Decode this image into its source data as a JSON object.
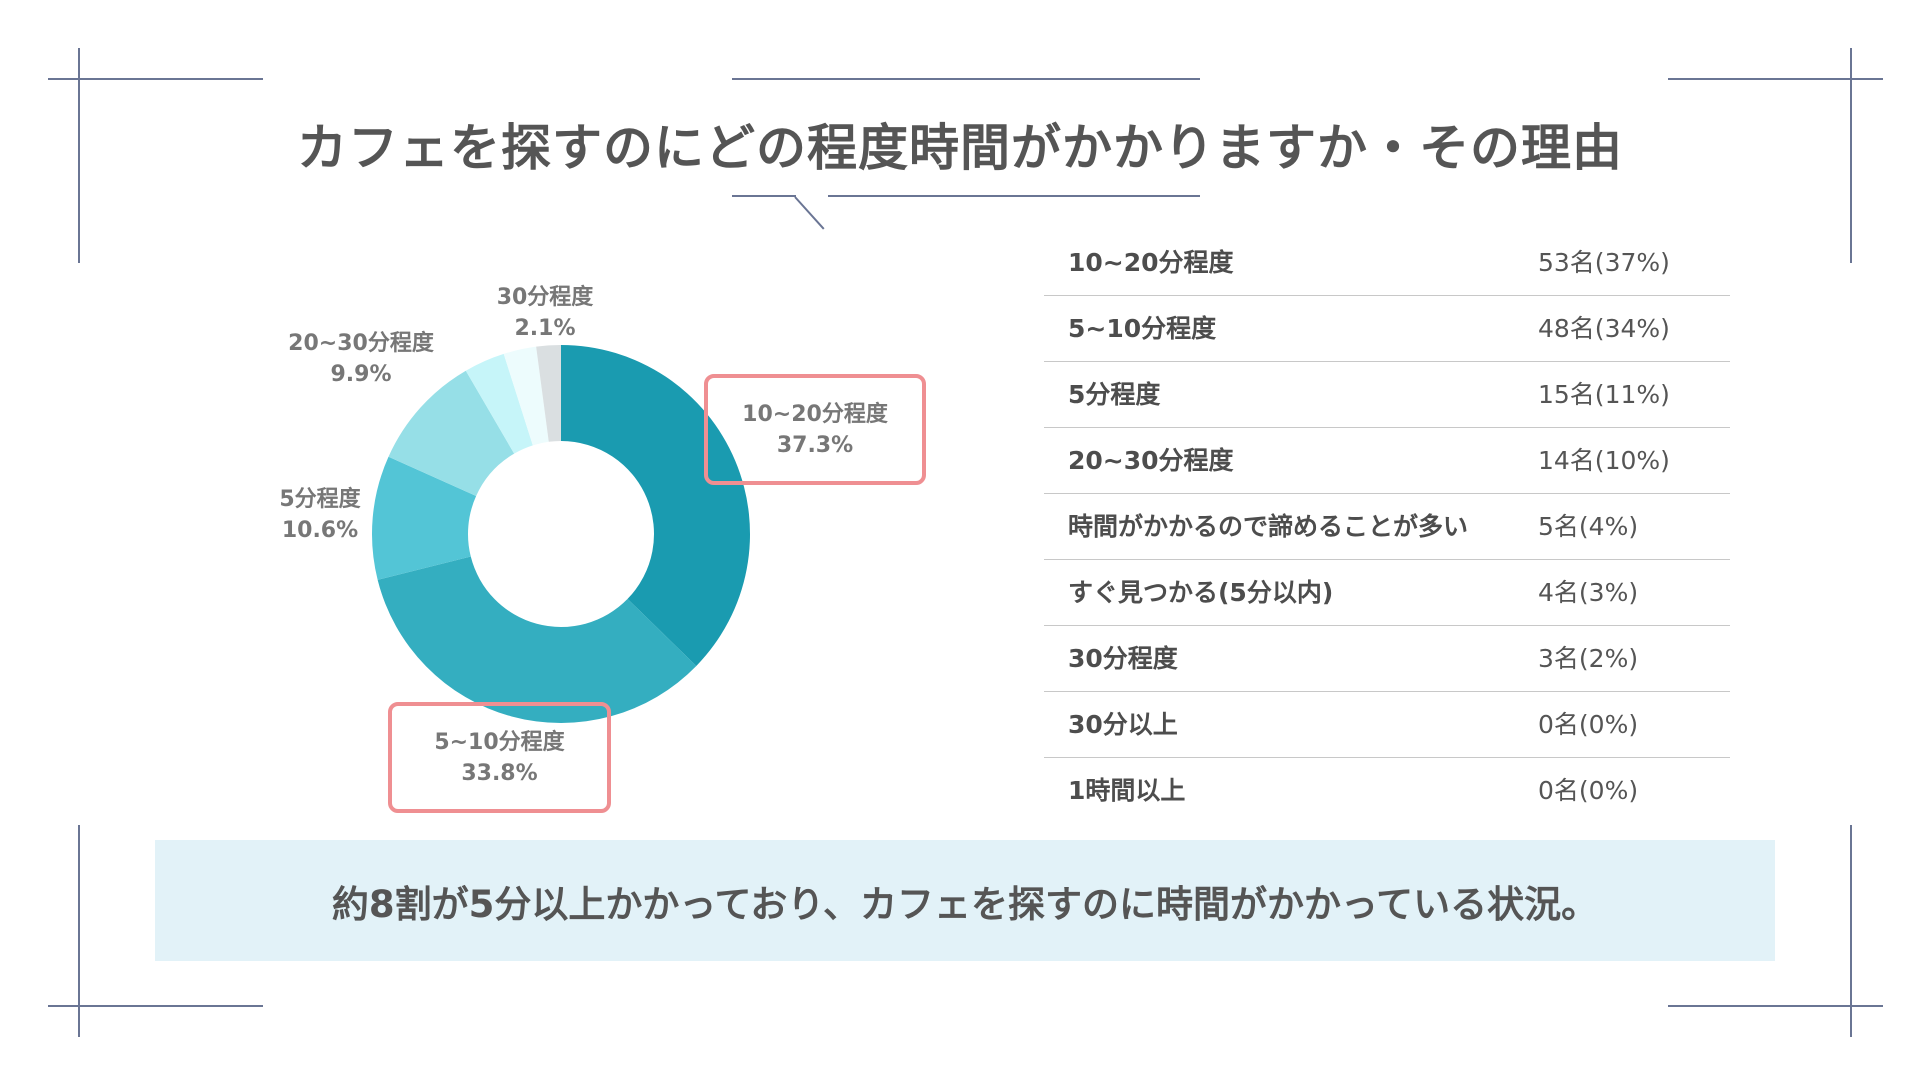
{
  "title": "カフェを探すのにどの程度時間がかかりますか・その理由",
  "summary": "約8割が5分以上かかっており、カフェを探すのに時間がかかっている状況。",
  "colors": {
    "slice_1": "#1a9bb0",
    "slice_2": "#34aec0",
    "slice_3": "#53c5d6",
    "slice_4": "#96dfe7",
    "slice_5": "#c6f5f9",
    "slice_6": "#edfcfd",
    "slice_7": "#dadfe1",
    "callout_border": "#ef8f92",
    "summary_bg": "#e2f2f8",
    "frame": "#6a7594"
  },
  "chart_data": {
    "type": "pie",
    "variant": "donut",
    "categories": [
      "10~20分程度",
      "5~10分程度",
      "5分程度",
      "20~30分程度",
      "時間がかかるので諦めることが多い",
      "すぐ見つかる(5分以内)",
      "30分程度"
    ],
    "values": [
      37.3,
      33.8,
      10.6,
      9.9,
      3.5,
      2.8,
      2.1
    ],
    "labels": [
      {
        "name": "10~20分程度",
        "pct": "37.3%"
      },
      {
        "name": "5~10分程度",
        "pct": "33.8%"
      },
      {
        "name": "5分程度",
        "pct": "10.6%"
      },
      {
        "name": "20~30分程度",
        "pct": "9.9%"
      },
      {
        "name": "30分程度",
        "pct": "2.1%"
      }
    ]
  },
  "table": [
    {
      "label": "10~20分程度",
      "value": "53名(37%)"
    },
    {
      "label": "5~10分程度",
      "value": "48名(34%)"
    },
    {
      "label": "5分程度",
      "value": "15名(11%)"
    },
    {
      "label": "20~30分程度",
      "value": "14名(10%)"
    },
    {
      "label": "時間がかかるので諦めることが多い",
      "value": "5名(4%)"
    },
    {
      "label": "すぐ見つかる(5分以内)",
      "value": "4名(3%)"
    },
    {
      "label": "30分程度",
      "value": "3名(2%)"
    },
    {
      "label": "30分以上",
      "value": "0名(0%)"
    },
    {
      "label": "1時間以上",
      "value": "0名(0%)"
    }
  ]
}
